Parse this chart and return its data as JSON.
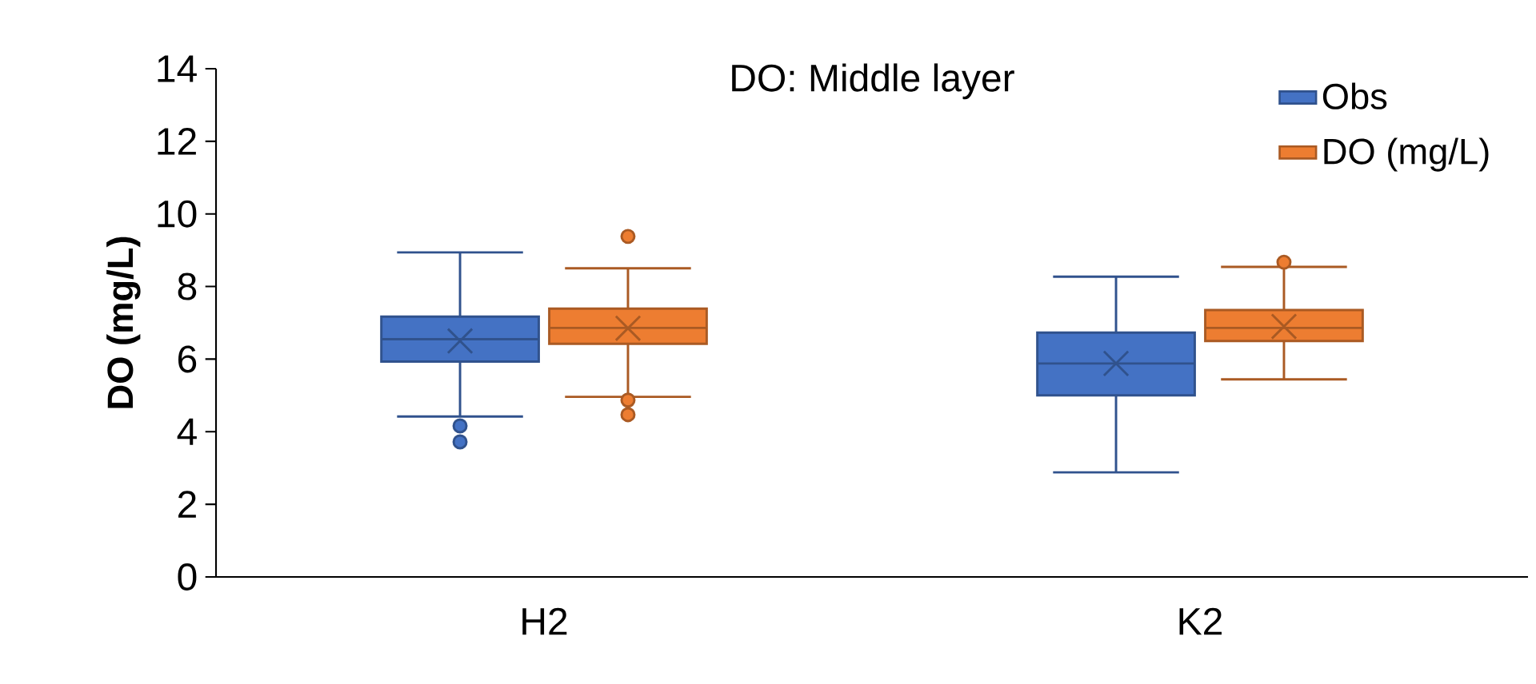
{
  "chart_data": {
    "type": "box",
    "title": "DO: Middle layer",
    "ylabel": "DO (mg/L)",
    "categories": [
      "H2",
      "K2"
    ],
    "series": [
      {
        "name": "Obs",
        "color": "#4472c4",
        "boxes": [
          {
            "low": 4.42,
            "q1": 5.93,
            "median": 6.55,
            "q3": 7.17,
            "high": 8.94,
            "mean": 6.5,
            "outliers": [
              4.16,
              3.72
            ]
          },
          {
            "low": 2.88,
            "q1": 5.0,
            "median": 5.88,
            "q3": 6.73,
            "high": 8.27,
            "mean": 5.88
          }
        ]
      },
      {
        "name": "DO (mg/L)",
        "color": "#ed7d31",
        "boxes": [
          {
            "low": 4.96,
            "q1": 6.42,
            "median": 6.86,
            "q3": 7.39,
            "high": 8.5,
            "mean": 6.85,
            "outliers": [
              9.38,
              4.87,
              4.47
            ]
          },
          {
            "low": 5.44,
            "q1": 6.5,
            "median": 6.86,
            "q3": 7.35,
            "high": 8.54,
            "mean": 6.9,
            "outliers": [
              8.67
            ]
          }
        ]
      }
    ],
    "ylim": [
      0,
      14
    ],
    "yticks": [
      0,
      2,
      4,
      6,
      8,
      10,
      12,
      14
    ],
    "legend": "top right"
  }
}
